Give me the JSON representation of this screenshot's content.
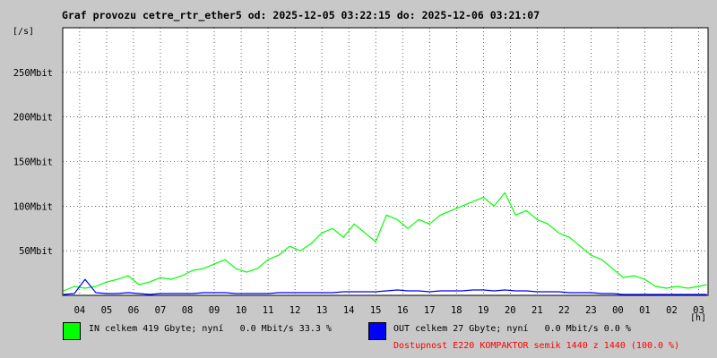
{
  "chart_data": {
    "type": "line",
    "title": "Graf provozu cetre_rtr_ether5 od: 2025-12-05 03:22:15 do: 2025-12-06 03:21:07",
    "y_unit_label": "[/s]",
    "x_unit_label": "[h]",
    "x_ticks": [
      "04",
      "05",
      "06",
      "07",
      "08",
      "09",
      "10",
      "11",
      "12",
      "13",
      "14",
      "15",
      "16",
      "17",
      "18",
      "19",
      "20",
      "21",
      "22",
      "23",
      "00",
      "01",
      "02",
      "03"
    ],
    "y_ticks": [
      {
        "value": 50,
        "label": "50Mbit"
      },
      {
        "value": 100,
        "label": "100Mbit"
      },
      {
        "value": 150,
        "label": "150Mbit"
      },
      {
        "value": 200,
        "label": "200Mbit"
      },
      {
        "value": 250,
        "label": "250Mbit"
      }
    ],
    "ylim": [
      0,
      300
    ],
    "xlim": [
      3.37,
      27.35
    ],
    "grid": true,
    "legend_position": "bottom",
    "series": [
      {
        "name": "IN",
        "color": "#00ff00",
        "x": [
          3.4,
          3.8,
          4.2,
          4.6,
          5.0,
          5.4,
          5.8,
          6.2,
          6.6,
          7.0,
          7.4,
          7.8,
          8.2,
          8.6,
          9.0,
          9.4,
          9.8,
          10.2,
          10.6,
          11.0,
          11.4,
          11.8,
          12.2,
          12.6,
          13.0,
          13.4,
          13.8,
          14.2,
          14.6,
          15.0,
          15.4,
          15.8,
          16.2,
          16.6,
          17.0,
          17.4,
          17.8,
          18.2,
          18.6,
          19.0,
          19.4,
          19.8,
          20.2,
          20.6,
          21.0,
          21.4,
          21.8,
          22.2,
          22.6,
          23.0,
          23.4,
          23.8,
          24.2,
          24.6,
          25.0,
          25.4,
          25.8,
          26.2,
          26.6,
          27.0,
          27.3
        ],
        "y": [
          5,
          10,
          8,
          10,
          15,
          18,
          22,
          12,
          15,
          20,
          18,
          22,
          28,
          30,
          35,
          40,
          30,
          26,
          30,
          40,
          45,
          55,
          50,
          58,
          70,
          75,
          65,
          80,
          70,
          60,
          90,
          85,
          75,
          85,
          80,
          90,
          95,
          100,
          105,
          110,
          100,
          115,
          90,
          95,
          85,
          80,
          70,
          65,
          55,
          45,
          40,
          30,
          20,
          22,
          18,
          10,
          8,
          10,
          8,
          10,
          12
        ],
        "in_total": "419 Gbyte",
        "current": "0.0 Mbit/s",
        "percent": "33.3 %"
      },
      {
        "name": "OUT",
        "color": "#0000ff",
        "x": [
          3.4,
          3.8,
          4.2,
          4.6,
          5.0,
          5.4,
          5.8,
          6.2,
          6.6,
          7.0,
          7.4,
          7.8,
          8.2,
          8.6,
          9.0,
          9.4,
          9.8,
          10.2,
          10.6,
          11.0,
          11.4,
          11.8,
          12.2,
          12.6,
          13.0,
          13.4,
          13.8,
          14.2,
          14.6,
          15.0,
          15.4,
          15.8,
          16.2,
          16.6,
          17.0,
          17.4,
          17.8,
          18.2,
          18.6,
          19.0,
          19.4,
          19.8,
          20.2,
          20.6,
          21.0,
          21.4,
          21.8,
          22.2,
          22.6,
          23.0,
          23.4,
          23.8,
          24.2,
          24.6,
          25.0,
          25.4,
          25.8,
          26.2,
          26.6,
          27.0,
          27.3
        ],
        "y": [
          1,
          2,
          18,
          3,
          2,
          2,
          3,
          2,
          1,
          2,
          2,
          2,
          2,
          3,
          3,
          3,
          2,
          2,
          2,
          2,
          3,
          3,
          3,
          3,
          3,
          3,
          4,
          4,
          4,
          4,
          5,
          6,
          5,
          5,
          4,
          5,
          5,
          5,
          6,
          6,
          5,
          6,
          5,
          5,
          4,
          4,
          4,
          3,
          3,
          3,
          2,
          2,
          1,
          1,
          1,
          1,
          1,
          1,
          1,
          1,
          1
        ],
        "current": "0.0 Mbit/s",
        "percent": "0.0 %"
      }
    ],
    "annotations": [
      "Dostupnost E220 KOMPAKTOR semik 1440 z 1440 (100.0 %)"
    ]
  },
  "legend": {
    "in_text": "IN celkem 419 Gbyte; nyní   0.0 Mbit/s 33.3 %",
    "out_text": "OUT celkem 27 Gbyte; nyní   0.0 Mbit/s 0.0 %",
    "availability_text": "Dostupnost E220 KOMPAKTOR semik 1440 z 1440 (100.0 %)",
    "availability_color": "#ff0000",
    "in_color": "#00ff00",
    "out_color": "#0000ff"
  }
}
